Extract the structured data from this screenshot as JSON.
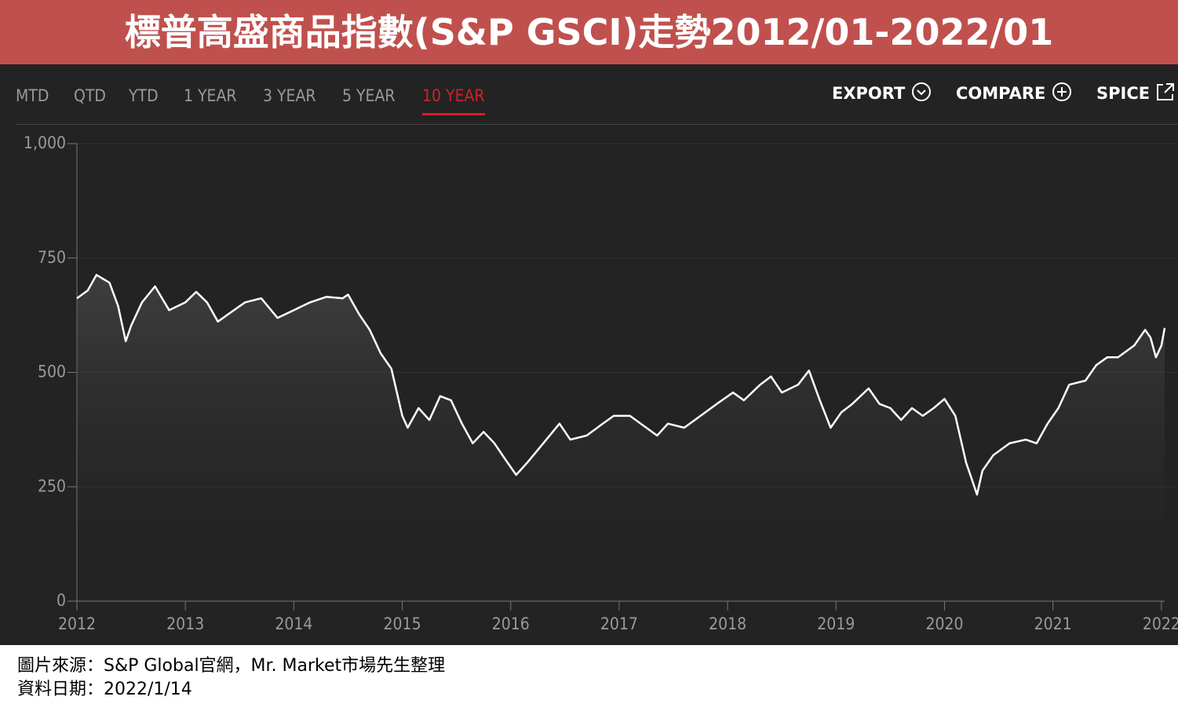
{
  "header": {
    "title": "標普高盛商品指數(S&P GSCI)走勢2012/01-2022/01"
  },
  "tabs": [
    {
      "label": "MTD"
    },
    {
      "label": "QTD"
    },
    {
      "label": "YTD"
    },
    {
      "label": "1 YEAR"
    },
    {
      "label": "3 YEAR"
    },
    {
      "label": "5 YEAR"
    },
    {
      "label": "10 YEAR",
      "selected": true
    }
  ],
  "buttons": [
    "EXPORT",
    "COMPARE",
    "SPICE"
  ],
  "footer": {
    "source": "圖片來源：S&P Global官網，Mr. Market市場先生整理",
    "date": "資料日期：2022/1/14"
  },
  "chart_data": {
    "type": "line",
    "grid": true,
    "xlim": [
      2012,
      2022.03
    ],
    "xticks": [
      2012,
      2013,
      2014,
      2015,
      2016,
      2017,
      2018,
      2019,
      2020,
      2021,
      2022
    ],
    "ylim": [
      0,
      1000
    ],
    "yticks": [
      0,
      250,
      500,
      750,
      {
        "value": 1000,
        "label": "1,000"
      }
    ],
    "x": [
      2012.0,
      2012.1,
      2012.18,
      2012.3,
      2012.38,
      2012.45,
      2012.5,
      2012.6,
      2012.72,
      2012.85,
      2013.0,
      2013.1,
      2013.2,
      2013.3,
      2013.4,
      2013.55,
      2013.7,
      2013.85,
      2014.0,
      2014.15,
      2014.3,
      2014.45,
      2014.5,
      2014.6,
      2014.7,
      2014.8,
      2014.9,
      2015.0,
      2015.05,
      2015.15,
      2015.25,
      2015.35,
      2015.45,
      2015.55,
      2015.65,
      2015.75,
      2015.85,
      2015.95,
      2016.05,
      2016.15,
      2016.3,
      2016.45,
      2016.55,
      2016.7,
      2016.85,
      2016.95,
      2017.1,
      2017.25,
      2017.35,
      2017.45,
      2017.6,
      2017.75,
      2017.9,
      2018.05,
      2018.15,
      2018.3,
      2018.4,
      2018.5,
      2018.65,
      2018.75,
      2018.85,
      2018.95,
      2019.05,
      2019.15,
      2019.3,
      2019.4,
      2019.5,
      2019.6,
      2019.7,
      2019.8,
      2019.9,
      2020.0,
      2020.1,
      2020.2,
      2020.25,
      2020.3,
      2020.35,
      2020.45,
      2020.6,
      2020.75,
      2020.85,
      2020.95,
      2021.05,
      2021.15,
      2021.3,
      2021.4,
      2021.5,
      2021.6,
      2021.75,
      2021.85,
      2021.9,
      2021.95,
      2022.0,
      2022.03
    ],
    "series": [
      {
        "color": "#ffffff",
        "values": [
          662,
          679,
          713,
          696,
          645,
          568,
          602,
          653,
          688,
          636,
          653,
          676,
          653,
          611,
          628,
          653,
          662,
          619,
          636,
          653,
          665,
          662,
          670,
          628,
          593,
          542,
          508,
          405,
          379,
          422,
          396,
          448,
          439,
          388,
          345,
          370,
          345,
          310,
          276,
          302,
          345,
          388,
          353,
          362,
          388,
          405,
          405,
          379,
          362,
          388,
          379,
          405,
          431,
          456,
          439,
          473,
          491,
          456,
          473,
          504,
          439,
          379,
          413,
          431,
          465,
          431,
          422,
          396,
          422,
          405,
          422,
          442,
          405,
          302,
          268,
          233,
          285,
          319,
          345,
          353,
          345,
          388,
          422,
          473,
          482,
          516,
          533,
          533,
          559,
          593,
          576,
          533,
          559,
          597
        ]
      }
    ]
  }
}
